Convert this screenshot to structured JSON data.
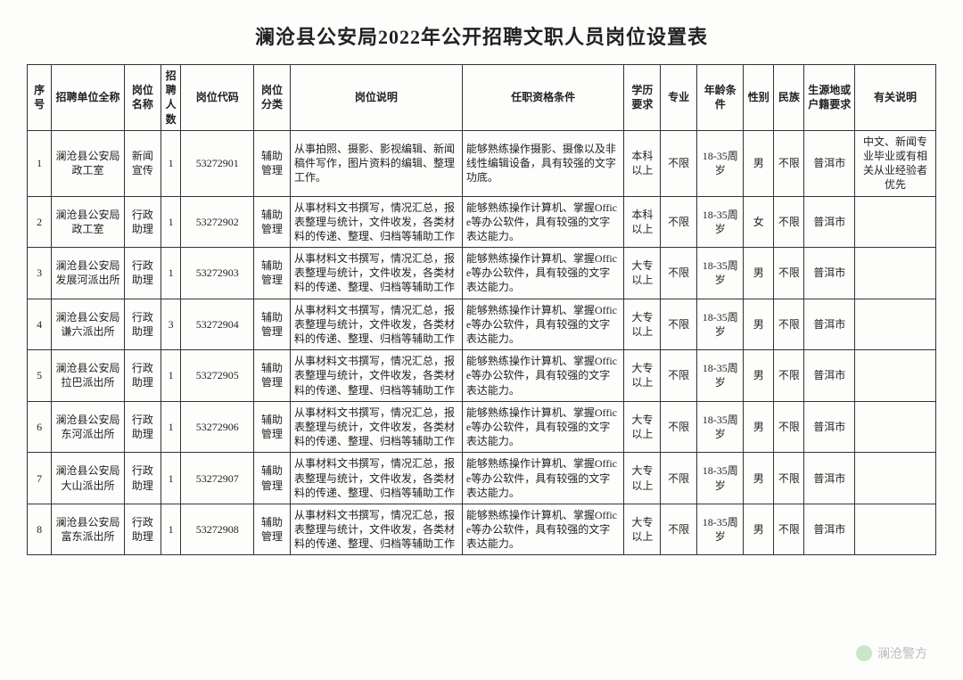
{
  "title": "澜沧县公安局2022年公开招聘文职人员岗位设置表",
  "columns": [
    "序号",
    "招聘单位全称",
    "岗位名称",
    "招聘人数",
    "岗位代码",
    "岗位分类",
    "岗位说明",
    "任职资格条件",
    "学历要求",
    "专业",
    "年龄条件",
    "性别",
    "民族",
    "生源地或户籍要求",
    "有关说明"
  ],
  "rows": [
    {
      "seq": "1",
      "unit": "澜沧县公安局政工室",
      "pos": "新闻宣传",
      "count": "1",
      "code": "53272901",
      "cat": "辅助管理",
      "desc": "从事拍照、摄影、影视编辑、新闻稿件写作，图片资料的编辑、整理工作。",
      "req": "能够熟练操作摄影、摄像以及非线性编辑设备，具有较强的文字功底。",
      "edu": "本科以上",
      "major": "不限",
      "age": "18-35周岁",
      "gender": "男",
      "ethn": "不限",
      "orig": "普洱市",
      "note": "中文、新闻专业毕业或有相关从业经验者优先"
    },
    {
      "seq": "2",
      "unit": "澜沧县公安局政工室",
      "pos": "行政助理",
      "count": "1",
      "code": "53272902",
      "cat": "辅助管理",
      "desc": "从事材料文书撰写，情况汇总，报表整理与统计，文件收发，各类材料的传递、整理、归档等辅助工作",
      "req": "能够熟练操作计算机、掌握Office等办公软件，具有较强的文字表达能力。",
      "edu": "本科以上",
      "major": "不限",
      "age": "18-35周岁",
      "gender": "女",
      "ethn": "不限",
      "orig": "普洱市",
      "note": ""
    },
    {
      "seq": "3",
      "unit": "澜沧县公安局发展河派出所",
      "pos": "行政助理",
      "count": "1",
      "code": "53272903",
      "cat": "辅助管理",
      "desc": "从事材料文书撰写，情况汇总，报表整理与统计，文件收发，各类材料的传递、整理、归档等辅助工作",
      "req": "能够熟练操作计算机、掌握Office等办公软件，具有较强的文字表达能力。",
      "edu": "大专以上",
      "major": "不限",
      "age": "18-35周岁",
      "gender": "男",
      "ethn": "不限",
      "orig": "普洱市",
      "note": ""
    },
    {
      "seq": "4",
      "unit": "澜沧县公安局谦六派出所",
      "pos": "行政助理",
      "count": "3",
      "code": "53272904",
      "cat": "辅助管理",
      "desc": "从事材料文书撰写，情况汇总，报表整理与统计，文件收发，各类材料的传递、整理、归档等辅助工作",
      "req": "能够熟练操作计算机、掌握Office等办公软件，具有较强的文字表达能力。",
      "edu": "大专以上",
      "major": "不限",
      "age": "18-35周岁",
      "gender": "男",
      "ethn": "不限",
      "orig": "普洱市",
      "note": ""
    },
    {
      "seq": "5",
      "unit": "澜沧县公安局拉巴派出所",
      "pos": "行政助理",
      "count": "1",
      "code": "53272905",
      "cat": "辅助管理",
      "desc": "从事材料文书撰写，情况汇总，报表整理与统计，文件收发，各类材料的传递、整理、归档等辅助工作",
      "req": "能够熟练操作计算机、掌握Office等办公软件，具有较强的文字表达能力。",
      "edu": "大专以上",
      "major": "不限",
      "age": "18-35周岁",
      "gender": "男",
      "ethn": "不限",
      "orig": "普洱市",
      "note": ""
    },
    {
      "seq": "6",
      "unit": "澜沧县公安局东河派出所",
      "pos": "行政助理",
      "count": "1",
      "code": "53272906",
      "cat": "辅助管理",
      "desc": "从事材料文书撰写，情况汇总，报表整理与统计，文件收发，各类材料的传递、整理、归档等辅助工作",
      "req": "能够熟练操作计算机、掌握Office等办公软件，具有较强的文字表达能力。",
      "edu": "大专以上",
      "major": "不限",
      "age": "18-35周岁",
      "gender": "男",
      "ethn": "不限",
      "orig": "普洱市",
      "note": ""
    },
    {
      "seq": "7",
      "unit": "澜沧县公安局大山派出所",
      "pos": "行政助理",
      "count": "1",
      "code": "53272907",
      "cat": "辅助管理",
      "desc": "从事材料文书撰写，情况汇总，报表整理与统计，文件收发，各类材料的传递、整理、归档等辅助工作",
      "req": "能够熟练操作计算机、掌握Office等办公软件，具有较强的文字表达能力。",
      "edu": "大专以上",
      "major": "不限",
      "age": "18-35周岁",
      "gender": "男",
      "ethn": "不限",
      "orig": "普洱市",
      "note": ""
    },
    {
      "seq": "8",
      "unit": "澜沧县公安局富东派出所",
      "pos": "行政助理",
      "count": "1",
      "code": "53272908",
      "cat": "辅助管理",
      "desc": "从事材料文书撰写，情况汇总，报表整理与统计，文件收发，各类材料的传递、整理、归档等辅助工作",
      "req": "能够熟练操作计算机、掌握Office等办公软件，具有较强的文字表达能力。",
      "edu": "大专以上",
      "major": "不限",
      "age": "18-35周岁",
      "gender": "男",
      "ethn": "不限",
      "orig": "普洱市",
      "note": ""
    }
  ],
  "watermark": "澜沧警方",
  "style": {
    "title_fontsize": 22,
    "cell_fontsize": 12,
    "border_color": "#333333",
    "background_color": "#fdfdfc",
    "text_color": "#222222"
  }
}
